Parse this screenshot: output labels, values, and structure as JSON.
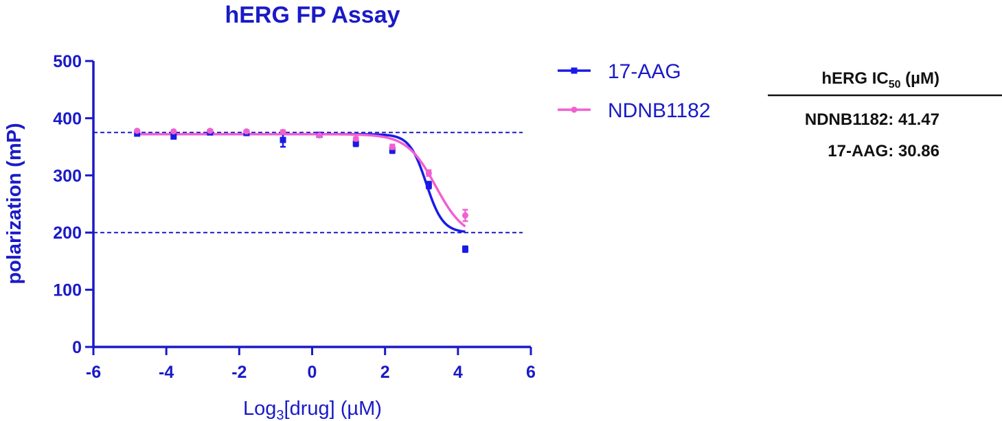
{
  "chart_data": {
    "type": "scatter",
    "title": "hERG FP Assay",
    "xlabel_main": "Log",
    "xlabel_sub": "3",
    "xlabel_rest": "[drug] (µM)",
    "ylabel": "polarization (mP)",
    "xlim": [
      -6,
      6
    ],
    "ylim": [
      0,
      500
    ],
    "xticks": [
      "-6",
      "-4",
      "-2",
      "0",
      "2",
      "4",
      "6"
    ],
    "yticks": [
      "0",
      "100",
      "200",
      "300",
      "400",
      "500"
    ],
    "reference_lines": [
      375,
      200
    ],
    "series": [
      {
        "name": "17-AAG",
        "color": "#1a1ae6",
        "marker": "square",
        "x": [
          -4.8,
          -3.8,
          -2.8,
          -1.8,
          -0.8,
          0.2,
          1.2,
          2.2,
          3.2,
          4.2
        ],
        "y": [
          373,
          368,
          375,
          374,
          362,
          371,
          356,
          344,
          283,
          171
        ],
        "error": [
          3,
          4,
          3,
          2,
          12,
          3,
          5,
          5,
          6,
          5
        ],
        "fit": {
          "top": 372,
          "bottom": 200,
          "logIC50": 3.13,
          "hill": 1.9
        }
      },
      {
        "name": "NDNB1182",
        "color": "#f060d0",
        "marker": "circle",
        "x": [
          -4.8,
          -3.8,
          -2.8,
          -1.8,
          -0.8,
          0.2,
          1.2,
          2.2,
          3.2,
          4.2
        ],
        "y": [
          378,
          377,
          378,
          377,
          376,
          370,
          364,
          350,
          304,
          230
        ],
        "error": [
          2,
          2,
          2,
          2,
          3,
          2,
          3,
          4,
          5,
          10
        ],
        "fit": {
          "top": 372,
          "bottom": 190,
          "logIC50": 3.39,
          "hill": 1.1
        }
      }
    ],
    "legend_position": "right"
  },
  "ic50_table": {
    "header_main": "hERG IC",
    "header_sub": "50",
    "header_unit": " (µM)",
    "rows": [
      {
        "label": "NDNB1182: 41.47"
      },
      {
        "label": "17-AAG: 30.86"
      }
    ]
  }
}
